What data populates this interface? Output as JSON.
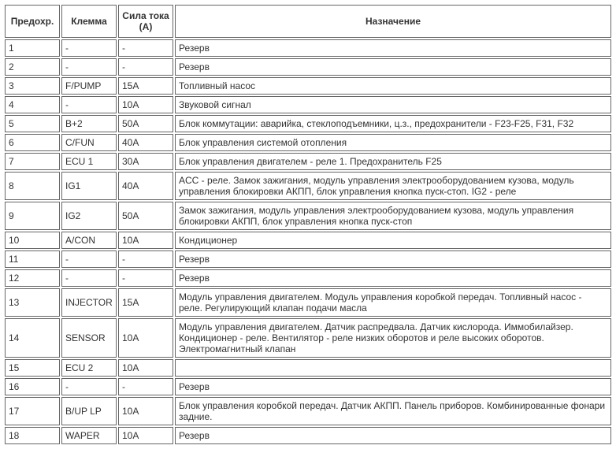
{
  "table": {
    "columns": [
      "Предохр.",
      "Клемма",
      "Сила тока (А)",
      "Назначение"
    ],
    "rows": [
      [
        "1",
        "-",
        "-",
        "Резерв"
      ],
      [
        "2",
        "-",
        "-",
        "Резерв"
      ],
      [
        "3",
        "F/PUMP",
        "15A",
        "Топливный насос"
      ],
      [
        "4",
        "-",
        "10A",
        "Звуковой сигнал"
      ],
      [
        "5",
        "B+2",
        "50A",
        "Блок коммутации: аварийка, стеклоподъемники, ц.з., предохранители - F23-F25, F31, F32"
      ],
      [
        "6",
        "C/FUN",
        "40A",
        "Блок управления системой отопления"
      ],
      [
        "7",
        "ECU 1",
        "30A",
        "Блок управления двигателем - реле 1. Предохранитель F25"
      ],
      [
        "8",
        "IG1",
        "40A",
        "ACC - реле. Замок зажигания, модуль управления электрооборудованием кузова, модуль управления блокировки АКПП, блок управления кнопка пуск-стоп. IG2 - реле"
      ],
      [
        "9",
        "IG2",
        "50A",
        "Замок зажигания, модуль управления электрооборудованием кузова, модуль управления блокировки АКПП, блок управления кнопка пуск-стоп"
      ],
      [
        "10",
        "A/CON",
        "10A",
        "Кондиционер"
      ],
      [
        "11",
        "-",
        "-",
        "Резерв"
      ],
      [
        "12",
        "-",
        "-",
        "Резерв"
      ],
      [
        "13",
        "INJECTOR",
        "15A",
        "Модуль управления двигателем. Модуль управления коробкой передач. Топливный насос - реле. Регулирующий клапан подачи масла"
      ],
      [
        "14",
        "SENSOR",
        "10A",
        "Модуль управления двигателем. Датчик распредвала. Датчик кислорода. Иммобилайзер. Кондиционер - реле. Вентилятор - реле низких оборотов и реле высоких оборотов. Электромагнитный клапан"
      ],
      [
        "15",
        "ECU 2",
        "10A",
        ""
      ],
      [
        "16",
        "-",
        "-",
        "Резерв"
      ],
      [
        "17",
        "B/UP LP",
        "10A",
        "Блок управления коробкой передач. Датчик АКПП. Панель приборов. Комбинированные фонари задние."
      ],
      [
        "18",
        "WAPER",
        "10A",
        "Резерв"
      ]
    ]
  }
}
